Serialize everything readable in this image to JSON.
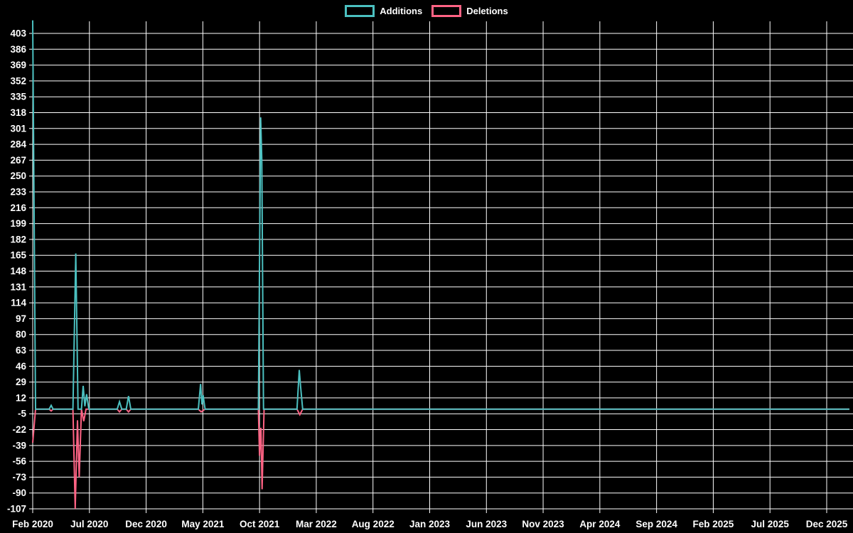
{
  "colors": {
    "background": "#000000",
    "grid": "#ffffff",
    "text": "#ffffff",
    "additions": "#4BC0C0",
    "deletions": "#FF6384"
  },
  "legend": {
    "items": [
      {
        "label": "Additions",
        "color": "#4BC0C0"
      },
      {
        "label": "Deletions",
        "color": "#FF6384"
      }
    ],
    "position": "top"
  },
  "chart_data": {
    "type": "line",
    "title": "",
    "xlabel": "",
    "ylabel": "",
    "grid": true,
    "legend_position": "top",
    "x_axis": {
      "unit": "months_since_Feb_2020",
      "tick_interval_months": 5,
      "tick_labels": [
        "Feb 2020",
        "Jul 2020",
        "Dec 2020",
        "May 2021",
        "Oct 2021",
        "Mar 2022",
        "Aug 2022",
        "Jan 2023",
        "Jun 2023",
        "Nov 2023",
        "Apr 2024",
        "Sep 2024",
        "Feb 2025",
        "Jul 2025",
        "Dec 2025"
      ],
      "data_extends_to_month": 72
    },
    "y_axis": {
      "ticks": [
        403,
        386,
        369,
        352,
        335,
        318,
        301,
        284,
        267,
        250,
        233,
        216,
        199,
        182,
        165,
        148,
        131,
        114,
        97,
        80,
        63,
        46,
        29,
        12,
        -5,
        -22,
        -39,
        -56,
        -73,
        -90,
        -107
      ],
      "min": -107,
      "max": 403,
      "tick_step": 17
    },
    "series": [
      {
        "name": "Additions",
        "color": "#4BC0C0",
        "points": [
          [
            0,
            417
          ],
          [
            0.25,
            0
          ],
          [
            1.45,
            0
          ],
          [
            1.63,
            4
          ],
          [
            1.8,
            0
          ],
          [
            3.55,
            0
          ],
          [
            3.8,
            167
          ],
          [
            4.0,
            0
          ],
          [
            4.3,
            0
          ],
          [
            4.45,
            25
          ],
          [
            4.6,
            3
          ],
          [
            4.75,
            16
          ],
          [
            4.95,
            0
          ],
          [
            7.45,
            0
          ],
          [
            7.65,
            8
          ],
          [
            7.85,
            0
          ],
          [
            8.25,
            0
          ],
          [
            8.45,
            14
          ],
          [
            8.65,
            0
          ],
          [
            14.6,
            0
          ],
          [
            14.8,
            27
          ],
          [
            14.92,
            5
          ],
          [
            15.02,
            15
          ],
          [
            15.2,
            0
          ],
          [
            19.9,
            0
          ],
          [
            20.1,
            313
          ],
          [
            20.2,
            268
          ],
          [
            20.35,
            0
          ],
          [
            23.3,
            0
          ],
          [
            23.5,
            42
          ],
          [
            23.62,
            24
          ],
          [
            23.8,
            0
          ],
          [
            72,
            0
          ]
        ]
      },
      {
        "name": "Deletions",
        "color": "#FF6384",
        "points": [
          [
            0,
            -36
          ],
          [
            0.25,
            0
          ],
          [
            1.45,
            0
          ],
          [
            1.63,
            -2
          ],
          [
            1.8,
            0
          ],
          [
            3.55,
            0
          ],
          [
            3.75,
            -107
          ],
          [
            3.95,
            -12
          ],
          [
            4.1,
            -73
          ],
          [
            4.3,
            0
          ],
          [
            4.5,
            -13
          ],
          [
            4.7,
            0
          ],
          [
            7.45,
            0
          ],
          [
            7.65,
            -3
          ],
          [
            7.85,
            0
          ],
          [
            8.25,
            0
          ],
          [
            8.45,
            -3
          ],
          [
            8.65,
            0
          ],
          [
            14.6,
            0
          ],
          [
            14.85,
            -3
          ],
          [
            15.2,
            0
          ],
          [
            19.9,
            0
          ],
          [
            20.0,
            -50
          ],
          [
            20.12,
            -20
          ],
          [
            20.22,
            -86
          ],
          [
            20.4,
            0
          ],
          [
            23.3,
            0
          ],
          [
            23.55,
            -6
          ],
          [
            23.8,
            0
          ],
          [
            72,
            0
          ]
        ]
      }
    ]
  }
}
